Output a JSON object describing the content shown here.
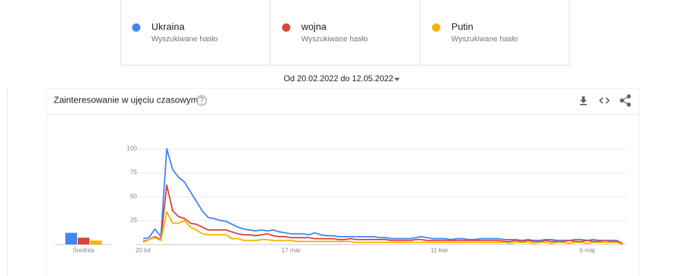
{
  "date_range": "Od 20.02.2022 do 12.05.2022",
  "chart_data": [
    {
      "type": "line",
      "title": "Zainteresowanie w ujęciu czasowym",
      "categories": [
        "20 lut",
        null,
        null,
        null,
        null,
        null,
        null,
        null,
        null,
        null,
        null,
        null,
        null,
        null,
        null,
        null,
        null,
        null,
        null,
        null,
        null,
        null,
        null,
        null,
        null,
        "17 mar",
        null,
        null,
        null,
        null,
        null,
        null,
        null,
        null,
        null,
        null,
        null,
        null,
        null,
        null,
        null,
        null,
        null,
        null,
        null,
        null,
        null,
        null,
        null,
        null,
        "11 kwi",
        null,
        null,
        null,
        null,
        null,
        null,
        null,
        null,
        null,
        null,
        null,
        null,
        null,
        null,
        null,
        null,
        null,
        null,
        null,
        null,
        null,
        null,
        null,
        null,
        "6 maj",
        null,
        null,
        null,
        null,
        null,
        null
      ],
      "ylim": [
        0,
        100
      ],
      "yticks": [
        25,
        50,
        75,
        100
      ],
      "grid": true,
      "series": [
        {
          "name": "Ukraina",
          "subtitle": "Wyszukiwane hasło",
          "color": "#4285f4",
          "values": [
            6,
            7,
            16,
            8,
            100,
            78,
            70,
            65,
            55,
            45,
            35,
            28,
            27,
            25,
            24,
            21,
            18,
            16,
            15,
            14,
            15,
            14,
            15,
            13,
            12,
            11,
            11,
            11,
            10,
            12,
            10,
            9,
            9,
            8,
            8,
            8,
            8,
            8,
            8,
            8,
            7,
            7,
            6,
            6,
            6,
            6,
            7,
            8,
            7,
            6,
            6,
            6,
            5,
            6,
            6,
            5,
            5,
            6,
            6,
            6,
            6,
            5,
            5,
            5,
            4,
            5,
            4,
            4,
            5,
            5,
            4,
            4,
            4,
            5,
            5,
            4,
            5,
            4,
            4,
            4,
            4,
            1
          ]
        },
        {
          "name": "wojna",
          "subtitle": "Wyszukiwane hasło",
          "color": "#db4437",
          "values": [
            3,
            5,
            8,
            5,
            62,
            35,
            29,
            27,
            22,
            21,
            18,
            15,
            15,
            15,
            15,
            13,
            11,
            10,
            10,
            9,
            10,
            11,
            9,
            8,
            8,
            7,
            7,
            7,
            7,
            6,
            6,
            6,
            6,
            5,
            5,
            6,
            5,
            5,
            5,
            5,
            5,
            5,
            4,
            4,
            4,
            4,
            5,
            5,
            4,
            4,
            4,
            4,
            4,
            4,
            4,
            4,
            4,
            4,
            4,
            4,
            4,
            3,
            3,
            4,
            3,
            4,
            3,
            3,
            4,
            3,
            3,
            3,
            4,
            3,
            3,
            4,
            3,
            3,
            4,
            3,
            3,
            1
          ]
        },
        {
          "name": "Putin",
          "subtitle": "Wyszukiwane hasło",
          "color": "#f4b400",
          "values": [
            2,
            5,
            7,
            4,
            34,
            22,
            22,
            25,
            18,
            15,
            11,
            10,
            10,
            10,
            10,
            6,
            6,
            4,
            4,
            4,
            5,
            5,
            4,
            4,
            4,
            4,
            3,
            3,
            3,
            3,
            3,
            3,
            3,
            3,
            3,
            3,
            2,
            2,
            2,
            2,
            2,
            2,
            2,
            2,
            2,
            2,
            2,
            2,
            2,
            2,
            2,
            2,
            2,
            2,
            2,
            2,
            2,
            2,
            2,
            2,
            2,
            2,
            1,
            2,
            2,
            2,
            1,
            2,
            2,
            1,
            2,
            2,
            1,
            2,
            2,
            1,
            2,
            2,
            2,
            2,
            2,
            0
          ]
        }
      ]
    },
    {
      "type": "bar",
      "categories": [
        "Średnia"
      ],
      "ylim": [
        0,
        100
      ],
      "series": [
        {
          "color": "#4285f4",
          "values": [
            12
          ]
        },
        {
          "color": "#db4437",
          "values": [
            7
          ]
        },
        {
          "color": "#f4b400",
          "values": [
            4
          ]
        }
      ]
    }
  ]
}
